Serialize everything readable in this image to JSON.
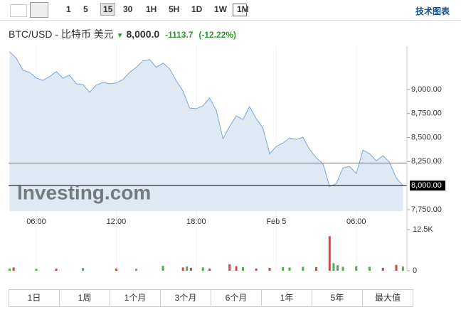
{
  "toolbar": {
    "intervals": [
      "1",
      "5",
      "15",
      "30",
      "1H",
      "5H",
      "1D",
      "1W",
      "1M"
    ],
    "selected": "15",
    "link": "技术图表"
  },
  "header": {
    "name": "BTC/USD - 比特币 美元",
    "price": "8,000.0",
    "change": "-1113.7",
    "change_pct": "(-12.22%)"
  },
  "watermark": "Investing.com",
  "periods": [
    "1日",
    "1周",
    "1个月",
    "3个月",
    "6个月",
    "1年",
    "5年",
    "最大值"
  ],
  "chart_data": [
    {
      "type": "area",
      "color": "#7aa7d6",
      "fill": "#dfe9f3",
      "x": [
        4.0,
        4.5,
        5.0,
        5.5,
        6.0,
        6.5,
        7.0,
        7.5,
        8.0,
        8.5,
        9.0,
        9.5,
        10.0,
        10.5,
        11.0,
        11.5,
        12.0,
        12.5,
        13.0,
        13.5,
        14.0,
        14.5,
        15.0,
        15.5,
        16.0,
        16.5,
        17.0,
        17.5,
        18.0,
        18.5,
        19.0,
        19.5,
        20.0,
        20.5,
        21.0,
        21.5,
        22.0,
        22.5,
        23.0,
        23.5,
        24.0,
        24.5,
        25.0,
        25.5,
        26.0,
        26.5,
        27.0,
        27.5,
        28.0,
        28.5,
        29.0,
        29.5,
        30.0,
        30.5,
        31.0,
        31.5,
        32.0,
        32.5,
        33.0,
        33.5
      ],
      "values": [
        9393,
        9326,
        9200,
        9178,
        9119,
        9096,
        9134,
        9185,
        9119,
        9148,
        9059,
        9052,
        8970,
        9045,
        9074,
        9059,
        9067,
        9104,
        9178,
        9230,
        9297,
        9312,
        9230,
        9274,
        9215,
        9089,
        8985,
        8807,
        8800,
        8829,
        8911,
        8785,
        8488,
        8614,
        8726,
        8688,
        8822,
        8696,
        8599,
        8332,
        8407,
        8444,
        8496,
        8481,
        8503,
        8377,
        8288,
        8229,
        7991,
        8021,
        8184,
        8199,
        8125,
        8369,
        8332,
        8258,
        8310,
        8243,
        8080,
        8000
      ],
      "xlim": [
        3.92,
        33.8
      ],
      "xticks": [
        {
          "value": 6,
          "label": "06:00"
        },
        {
          "value": 12,
          "label": "12:00"
        },
        {
          "value": 18,
          "label": "18:00"
        },
        {
          "value": 24,
          "label": "Feb 5"
        },
        {
          "value": 30,
          "label": "06:00"
        }
      ],
      "ylim": [
        7735,
        9450
      ],
      "yticks": [
        {
          "value": 7750,
          "label": "7,750.00"
        },
        {
          "value": 8000,
          "label": "8,000.00",
          "highlight": true
        },
        {
          "value": 8250,
          "label": "8,250.00"
        },
        {
          "value": 8500,
          "label": "8,500.00"
        },
        {
          "value": 8750,
          "label": "8,750.00"
        },
        {
          "value": 9000,
          "label": "9,000.00"
        }
      ],
      "reference_line": {
        "value": 8235,
        "color": "#c0504d"
      }
    },
    {
      "type": "bar",
      "x": [
        4.0,
        4.3,
        6.0,
        7.5,
        9.5,
        12.0,
        13.5,
        15.5,
        17.0,
        17.3,
        17.6,
        18.5,
        19.0,
        20.5,
        21.0,
        21.5,
        22.5,
        23.5,
        24.5,
        25.0,
        26.0,
        27.0,
        28.0,
        28.3,
        28.6,
        29.0,
        30.0,
        31.0,
        32.0,
        33.0,
        33.5
      ],
      "values": [
        700,
        1000,
        600,
        700,
        800,
        700,
        600,
        1500,
        1000,
        1300,
        900,
        1000,
        700,
        2000,
        1400,
        1100,
        700,
        900,
        1100,
        1000,
        1200,
        1100,
        10500,
        2300,
        1700,
        1200,
        1400,
        1200,
        900,
        1800,
        1300
      ],
      "colors": [
        "#5ba85b",
        "#c0504d",
        "#5ba85b",
        "#c0504d",
        "#5ba85b",
        "#c0504d",
        "#5ba85b",
        "#5ba85b",
        "#c0504d",
        "#5ba85b",
        "#c0504d",
        "#5ba85b",
        "#c0504d",
        "#c0504d",
        "#c0504d",
        "#5ba85b",
        "#c0504d",
        "#c0504d",
        "#5ba85b",
        "#5ba85b",
        "#5ba85b",
        "#c0504d",
        "#c0504d",
        "#5ba85b",
        "#5ba85b",
        "#5ba85b",
        "#5ba85b",
        "#5ba85b",
        "#c0504d",
        "#c0504d",
        "#5ba85b"
      ],
      "ylim": [
        0,
        12500
      ],
      "yticks": [
        0,
        {
          "value": 12500,
          "label": "12.5K"
        }
      ]
    }
  ]
}
